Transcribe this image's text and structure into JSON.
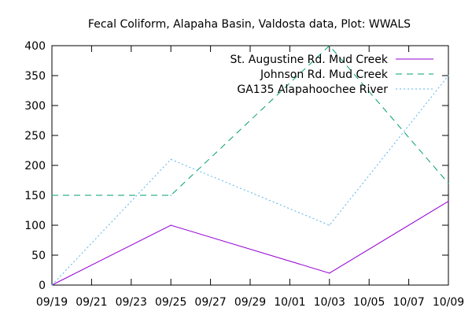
{
  "chart_data": {
    "type": "line",
    "title": "Fecal Coliform, Alapaha Basin, Valdosta data, Plot: WWALS",
    "xlabel": "",
    "ylabel": "",
    "x_tick_labels": [
      "09/19",
      "09/21",
      "09/23",
      "09/25",
      "09/27",
      "09/29",
      "10/01",
      "10/03",
      "10/05",
      "10/07",
      "10/09"
    ],
    "y_ticks": [
      0,
      50,
      100,
      150,
      200,
      250,
      300,
      350,
      400
    ],
    "ylim": [
      0,
      400
    ],
    "xlim": [
      "09/19",
      "10/09"
    ],
    "grid": false,
    "legend_position": "top-right",
    "series": [
      {
        "name": "St. Augustine Rd. Mud Creek",
        "color": "#9400d3",
        "style": "solid",
        "points": [
          {
            "x": "09/19",
            "y": 0
          },
          {
            "x": "09/25",
            "y": 100
          },
          {
            "x": "10/03",
            "y": 20
          },
          {
            "x": "10/09",
            "y": 140
          }
        ]
      },
      {
        "name": "Johnson Rd. Mud Creek",
        "color": "#009e73",
        "style": "dashed",
        "points": [
          {
            "x": "09/19",
            "y": 150
          },
          {
            "x": "09/25",
            "y": 150
          },
          {
            "x": "10/03",
            "y": 400
          },
          {
            "x": "10/09",
            "y": 170
          }
        ]
      },
      {
        "name": "GA135 Alapahoochee River",
        "color": "#56b4e9",
        "style": "dotted",
        "points": [
          {
            "x": "09/19",
            "y": 0
          },
          {
            "x": "09/25",
            "y": 210
          },
          {
            "x": "10/03",
            "y": 100
          },
          {
            "x": "10/09",
            "y": 350
          }
        ]
      }
    ]
  }
}
